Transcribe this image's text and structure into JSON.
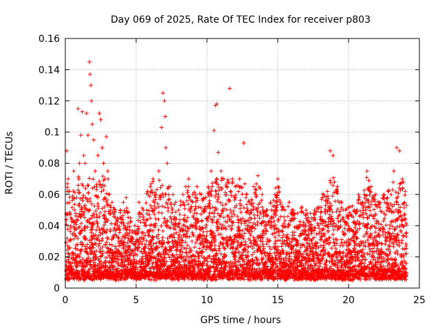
{
  "chart_data": {
    "type": "scatter",
    "title": "Day 069 of 2025, Rate Of TEC Index for receiver p803",
    "xlabel": "GPS time / hours",
    "ylabel": "ROTI / TECUs",
    "xlim": [
      0,
      25
    ],
    "ylim": [
      0,
      0.16
    ],
    "xticks": [
      0,
      5,
      10,
      15,
      20,
      25
    ],
    "yticks": [
      0,
      0.02,
      0.04,
      0.06,
      0.08,
      0.1,
      0.12,
      0.14,
      0.16
    ],
    "xtick_labels": [
      "0",
      "5",
      "10",
      "15",
      "20",
      "25"
    ],
    "ytick_labels": [
      "0",
      "0.02",
      "0.04",
      "0.06",
      "0.08",
      "0.1",
      "0.12",
      "0.14",
      "0.16"
    ],
    "grid": true,
    "marker": "+",
    "color": "#ff0000",
    "series": [
      {
        "name": "ROTI",
        "points": [
          [
            0.1,
            0.088
          ],
          [
            0.2,
            0.07
          ],
          [
            0.3,
            0.062
          ],
          [
            0.4,
            0.045
          ],
          [
            0.6,
            0.075
          ],
          [
            0.8,
            0.058
          ],
          [
            0.9,
            0.115
          ],
          [
            1.0,
            0.08
          ],
          [
            1.1,
            0.098
          ],
          [
            1.2,
            0.113
          ],
          [
            1.3,
            0.085
          ],
          [
            1.4,
            0.08
          ],
          [
            1.5,
            0.112
          ],
          [
            1.6,
            0.098
          ],
          [
            1.7,
            0.145
          ],
          [
            1.75,
            0.137
          ],
          [
            1.8,
            0.13
          ],
          [
            1.85,
            0.12
          ],
          [
            1.9,
            0.105
          ],
          [
            2.0,
            0.095
          ],
          [
            2.1,
            0.075
          ],
          [
            2.2,
            0.065
          ],
          [
            2.3,
            0.085
          ],
          [
            2.4,
            0.112
          ],
          [
            2.5,
            0.108
          ],
          [
            2.6,
            0.09
          ],
          [
            2.7,
            0.08
          ],
          [
            2.8,
            0.07
          ],
          [
            2.9,
            0.097
          ],
          [
            3.0,
            0.075
          ],
          [
            3.1,
            0.06
          ],
          [
            3.3,
            0.055
          ],
          [
            3.5,
            0.05
          ],
          [
            3.7,
            0.045
          ],
          [
            3.9,
            0.05
          ],
          [
            4.1,
            0.055
          ],
          [
            4.3,
            0.058
          ],
          [
            4.6,
            0.045
          ],
          [
            4.9,
            0.04
          ],
          [
            5.2,
            0.055
          ],
          [
            5.5,
            0.05
          ],
          [
            5.8,
            0.062
          ],
          [
            6.0,
            0.065
          ],
          [
            6.2,
            0.07
          ],
          [
            6.4,
            0.06
          ],
          [
            6.6,
            0.075
          ],
          [
            6.8,
            0.103
          ],
          [
            6.9,
            0.125
          ],
          [
            7.0,
            0.12
          ],
          [
            7.05,
            0.11
          ],
          [
            7.1,
            0.09
          ],
          [
            7.2,
            0.08
          ],
          [
            7.4,
            0.065
          ],
          [
            7.6,
            0.06
          ],
          [
            7.8,
            0.055
          ],
          [
            8.0,
            0.05
          ],
          [
            8.3,
            0.06
          ],
          [
            8.5,
            0.065
          ],
          [
            8.7,
            0.07
          ],
          [
            9.0,
            0.06
          ],
          [
            9.3,
            0.065
          ],
          [
            9.6,
            0.06
          ],
          [
            9.9,
            0.058
          ],
          [
            10.1,
            0.065
          ],
          [
            10.3,
            0.075
          ],
          [
            10.5,
            0.101
          ],
          [
            10.6,
            0.117
          ],
          [
            10.7,
            0.118
          ],
          [
            10.8,
            0.087
          ],
          [
            11.0,
            0.075
          ],
          [
            11.2,
            0.07
          ],
          [
            11.4,
            0.065
          ],
          [
            11.6,
            0.128
          ],
          [
            11.8,
            0.07
          ],
          [
            12.0,
            0.065
          ],
          [
            12.3,
            0.07
          ],
          [
            12.6,
            0.093
          ],
          [
            12.8,
            0.06
          ],
          [
            13.0,
            0.055
          ],
          [
            13.3,
            0.065
          ],
          [
            13.6,
            0.072
          ],
          [
            13.9,
            0.06
          ],
          [
            14.2,
            0.05
          ],
          [
            14.5,
            0.055
          ],
          [
            14.8,
            0.06
          ],
          [
            15.0,
            0.07
          ],
          [
            15.2,
            0.055
          ],
          [
            15.5,
            0.05
          ],
          [
            15.8,
            0.055
          ],
          [
            16.1,
            0.05
          ],
          [
            16.4,
            0.048
          ],
          [
            16.7,
            0.052
          ],
          [
            17.0,
            0.05
          ],
          [
            17.3,
            0.048
          ],
          [
            17.6,
            0.05
          ],
          [
            17.9,
            0.052
          ],
          [
            18.2,
            0.06
          ],
          [
            18.5,
            0.062
          ],
          [
            18.7,
            0.088
          ],
          [
            18.9,
            0.085
          ],
          [
            19.0,
            0.068
          ],
          [
            19.2,
            0.065
          ],
          [
            19.5,
            0.055
          ],
          [
            19.8,
            0.05
          ],
          [
            20.1,
            0.052
          ],
          [
            20.4,
            0.05
          ],
          [
            20.7,
            0.06
          ],
          [
            21.0,
            0.055
          ],
          [
            21.3,
            0.075
          ],
          [
            21.6,
            0.065
          ],
          [
            21.9,
            0.06
          ],
          [
            22.2,
            0.055
          ],
          [
            22.5,
            0.06
          ],
          [
            22.8,
            0.062
          ],
          [
            23.0,
            0.06
          ],
          [
            23.2,
            0.075
          ],
          [
            23.4,
            0.09
          ],
          [
            23.6,
            0.088
          ],
          [
            23.8,
            0.07
          ],
          [
            24.0,
            0.062
          ]
        ]
      }
    ]
  }
}
